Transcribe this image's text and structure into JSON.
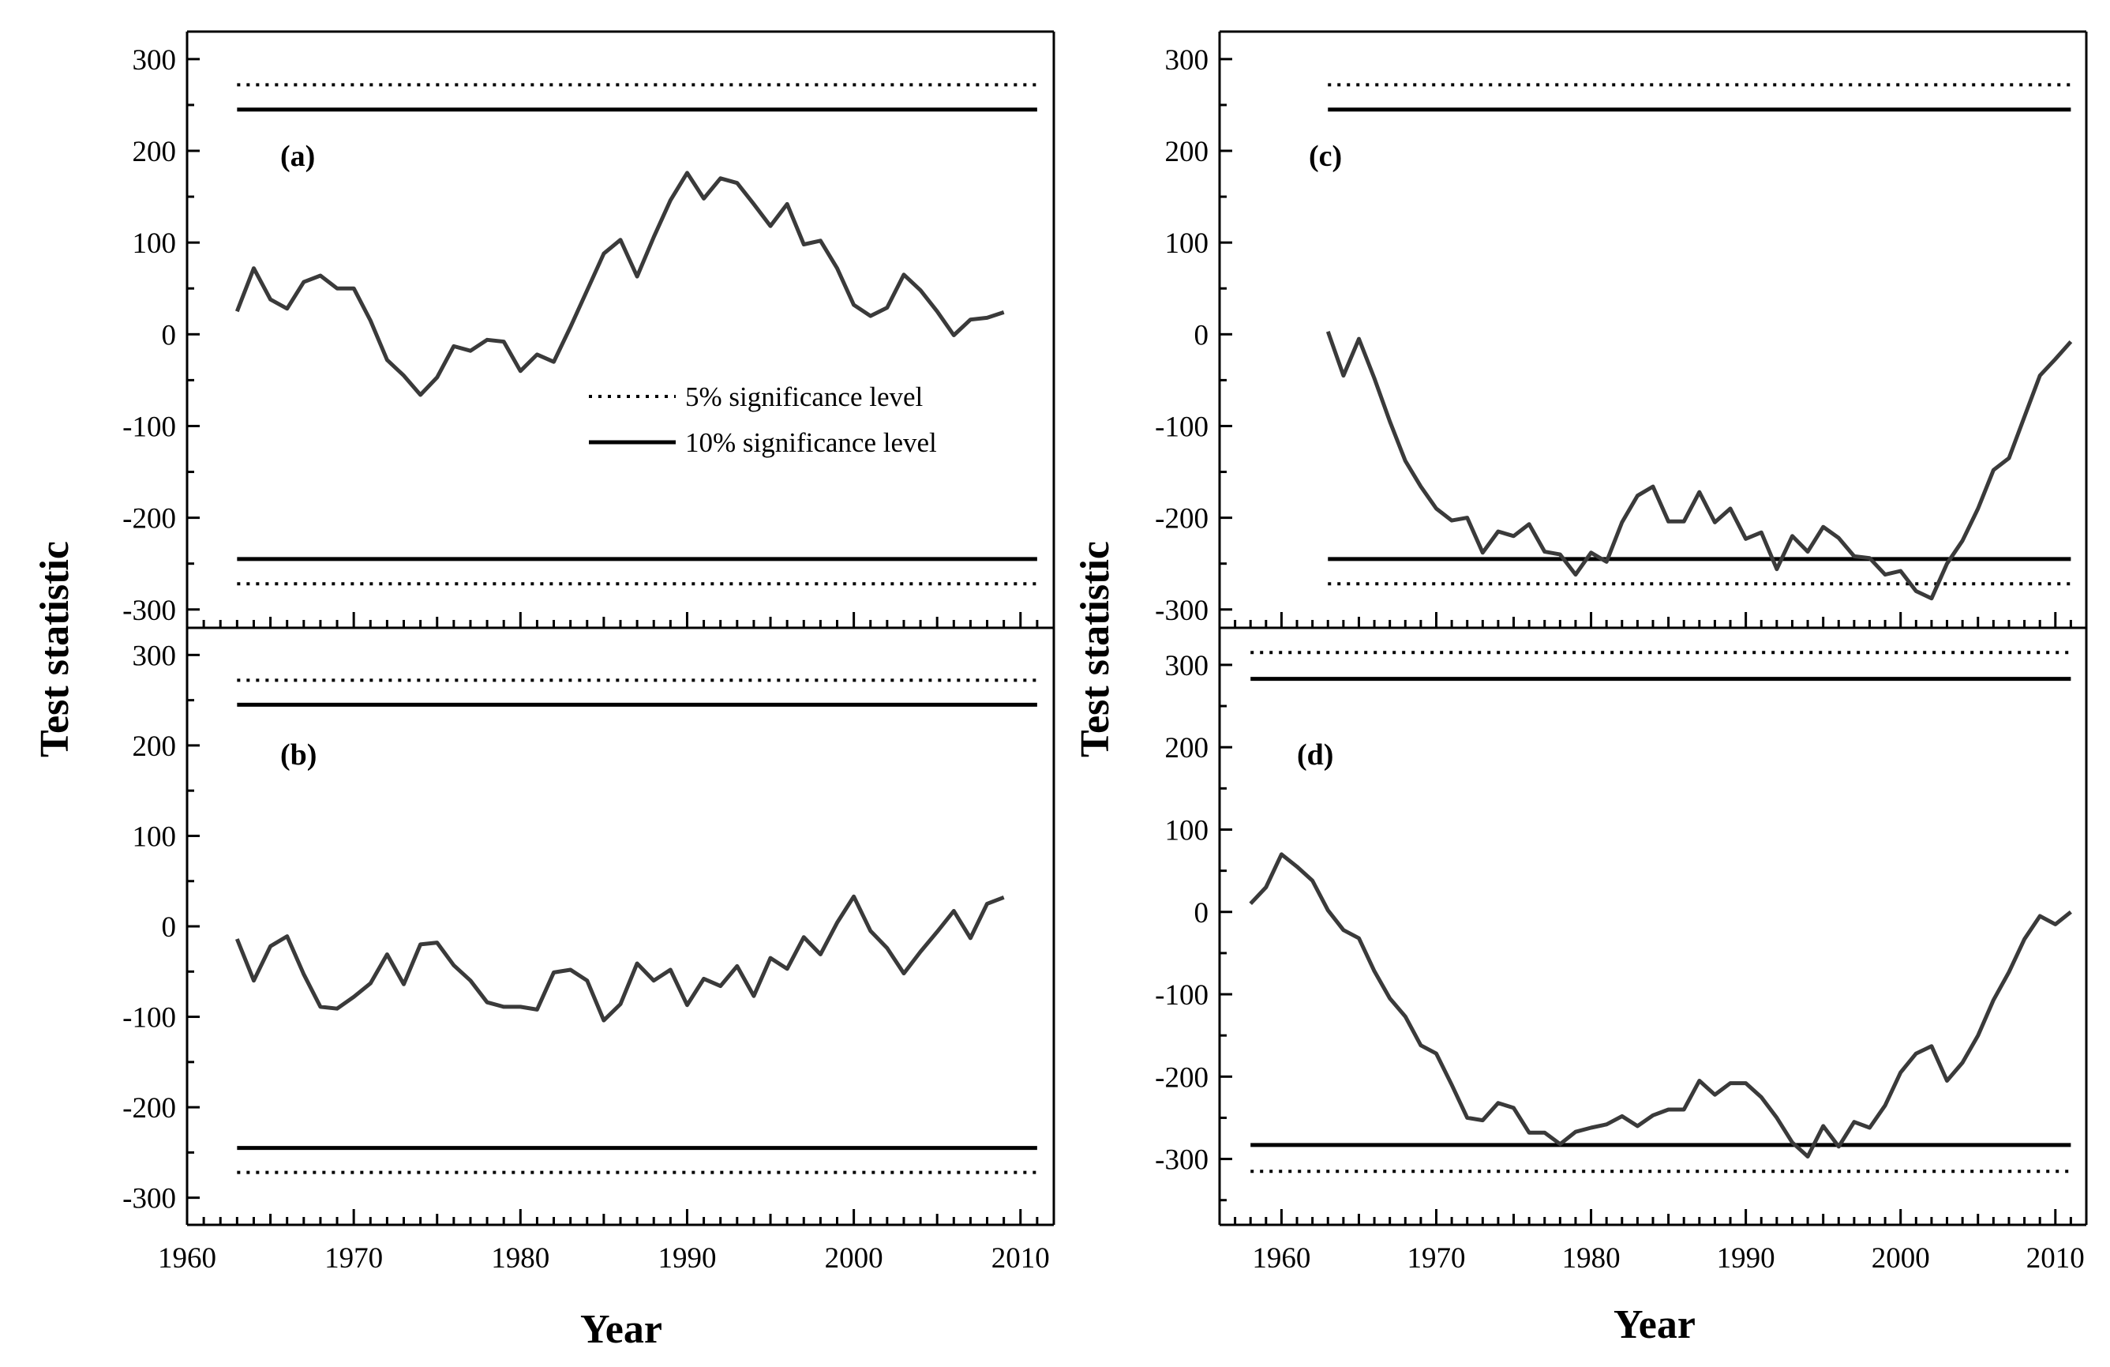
{
  "figure": {
    "ylabel": "Test statistic",
    "xlabel": "Year",
    "legend": [
      {
        "label": "5% significance level",
        "style": "dotted"
      },
      {
        "label": "10% significance level",
        "style": "solid"
      }
    ],
    "colors": {
      "series": "#3a3a3a",
      "axis": "#000000",
      "threshold": "#000000"
    }
  },
  "chart_data": [
    {
      "type": "line",
      "panel": "(a)",
      "xlim": [
        1960,
        2012
      ],
      "ylim": [
        -320,
        330
      ],
      "yticks": [
        300,
        200,
        100,
        0,
        -100,
        -200,
        -300
      ],
      "xticks": [
        1960,
        1970,
        1980,
        1990,
        2000,
        2010
      ],
      "thresholds": {
        "five_percent": [
          272,
          -272
        ],
        "ten_percent": [
          245,
          -245
        ],
        "x_range": [
          1963,
          2011
        ]
      },
      "legend_placement": "center",
      "series": [
        {
          "name": "Test statistic",
          "x": [
            1963,
            1964,
            1965,
            1966,
            1967,
            1968,
            1969,
            1970,
            1971,
            1972,
            1973,
            1974,
            1975,
            1976,
            1977,
            1978,
            1979,
            1980,
            1981,
            1982,
            1983,
            1984,
            1985,
            1986,
            1987,
            1988,
            1989,
            1990,
            1991,
            1992,
            1993,
            1994,
            1995,
            1996,
            1997,
            1998,
            1999,
            2000,
            2001,
            2002,
            2003,
            2004,
            2005,
            2006,
            2007,
            2008,
            2009
          ],
          "values": [
            25,
            72,
            38,
            28,
            57,
            64,
            50,
            50,
            15,
            -28,
            -45,
            -66,
            -47,
            -13,
            -18,
            -6,
            -8,
            -40,
            -22,
            -30,
            8,
            48,
            88,
            103,
            63,
            106,
            146,
            176,
            148,
            170,
            165,
            142,
            118,
            142,
            98,
            102,
            72,
            32,
            20,
            29,
            65,
            48,
            25,
            -1,
            16,
            18,
            24
          ]
        }
      ]
    },
    {
      "type": "line",
      "panel": "(b)",
      "xlim": [
        1960,
        2012
      ],
      "ylim": [
        -330,
        330
      ],
      "yticks": [
        300,
        200,
        100,
        0,
        -100,
        -200,
        -300
      ],
      "xticks": [
        1960,
        1970,
        1980,
        1990,
        2000,
        2010
      ],
      "thresholds": {
        "five_percent": [
          272,
          -272
        ],
        "ten_percent": [
          245,
          -245
        ],
        "x_range": [
          1963,
          2011
        ]
      },
      "series": [
        {
          "name": "Test statistic",
          "x": [
            1963,
            1964,
            1965,
            1966,
            1967,
            1968,
            1969,
            1970,
            1971,
            1972,
            1973,
            1974,
            1975,
            1976,
            1977,
            1978,
            1979,
            1980,
            1981,
            1982,
            1983,
            1984,
            1985,
            1986,
            1987,
            1988,
            1989,
            1990,
            1991,
            1992,
            1993,
            1994,
            1995,
            1996,
            1997,
            1998,
            1999,
            2000,
            2001,
            2002,
            2003,
            2004,
            2005,
            2006,
            2007,
            2008,
            2009
          ],
          "values": [
            -14,
            -60,
            -22,
            -11,
            -53,
            -89,
            -91,
            -78,
            -63,
            -31,
            -64,
            -20,
            -18,
            -43,
            -60,
            -84,
            -89,
            -89,
            -92,
            -51,
            -48,
            -60,
            -104,
            -86,
            -41,
            -60,
            -48,
            -87,
            -58,
            -66,
            -44,
            -77,
            -35,
            -47,
            -12,
            -31,
            4,
            33,
            -5,
            -24,
            -52,
            -28,
            -6,
            17,
            -13,
            25,
            32
          ]
        }
      ]
    },
    {
      "type": "line",
      "panel": "(c)",
      "xlim": [
        1956,
        2012
      ],
      "ylim": [
        -320,
        330
      ],
      "yticks": [
        300,
        200,
        100,
        0,
        -100,
        -200,
        -300
      ],
      "xticks": [
        1960,
        1970,
        1980,
        1990,
        2000,
        2010
      ],
      "thresholds": {
        "five_percent": [
          272,
          -272
        ],
        "ten_percent": [
          245,
          -245
        ],
        "x_range": [
          1963,
          2011
        ]
      },
      "series": [
        {
          "name": "Test statistic",
          "x": [
            1963,
            1964,
            1965,
            1966,
            1967,
            1968,
            1969,
            1970,
            1971,
            1972,
            1973,
            1974,
            1975,
            1976,
            1977,
            1978,
            1979,
            1980,
            1981,
            1982,
            1983,
            1984,
            1985,
            1986,
            1987,
            1988,
            1989,
            1990,
            1991,
            1992,
            1993,
            1994,
            1995,
            1996,
            1997,
            1998,
            1999,
            2000,
            2001,
            2002,
            2003,
            2004,
            2005,
            2006,
            2007,
            2008,
            2009,
            2010,
            2011
          ],
          "values": [
            3,
            -45,
            -5,
            -48,
            -95,
            -138,
            -166,
            -190,
            -203,
            -200,
            -238,
            -215,
            -220,
            -207,
            -237,
            -240,
            -262,
            -238,
            -248,
            -205,
            -176,
            -166,
            -204,
            -204,
            -172,
            -205,
            -190,
            -223,
            -216,
            -256,
            -220,
            -237,
            -210,
            -222,
            -242,
            -244,
            -262,
            -258,
            -280,
            -288,
            -250,
            -225,
            -190,
            -148,
            -135,
            -90,
            -45,
            -27,
            -8
          ]
        }
      ]
    },
    {
      "type": "line",
      "panel": "(d)",
      "xlim": [
        1956,
        2012
      ],
      "ylim": [
        -380,
        345
      ],
      "yticks": [
        300,
        200,
        100,
        0,
        -100,
        -200,
        -300
      ],
      "xticks": [
        1960,
        1970,
        1980,
        1990,
        2000,
        2010
      ],
      "thresholds": {
        "five_percent": [
          315,
          -315
        ],
        "ten_percent": [
          283,
          -283
        ],
        "x_range": [
          1958,
          2011
        ]
      },
      "series": [
        {
          "name": "Test statistic",
          "x": [
            1958,
            1959,
            1960,
            1961,
            1962,
            1963,
            1964,
            1965,
            1966,
            1967,
            1968,
            1969,
            1970,
            1971,
            1972,
            1973,
            1974,
            1975,
            1976,
            1977,
            1978,
            1979,
            1980,
            1981,
            1982,
            1983,
            1984,
            1985,
            1986,
            1987,
            1988,
            1989,
            1990,
            1991,
            1992,
            1993,
            1994,
            1995,
            1996,
            1997,
            1998,
            1999,
            2000,
            2001,
            2002,
            2003,
            2004,
            2005,
            2006,
            2007,
            2008,
            2009,
            2010,
            2011
          ],
          "values": [
            10,
            30,
            70,
            55,
            38,
            2,
            -22,
            -32,
            -72,
            -105,
            -127,
            -162,
            -172,
            -210,
            -250,
            -253,
            -232,
            -238,
            -268,
            -268,
            -282,
            -267,
            -262,
            -258,
            -248,
            -260,
            -247,
            -240,
            -240,
            -205,
            -222,
            -208,
            -208,
            -225,
            -250,
            -280,
            -297,
            -260,
            -285,
            -255,
            -262,
            -235,
            -195,
            -172,
            -163,
            -205,
            -183,
            -150,
            -107,
            -73,
            -33,
            -5,
            -15,
            0
          ]
        }
      ]
    }
  ]
}
